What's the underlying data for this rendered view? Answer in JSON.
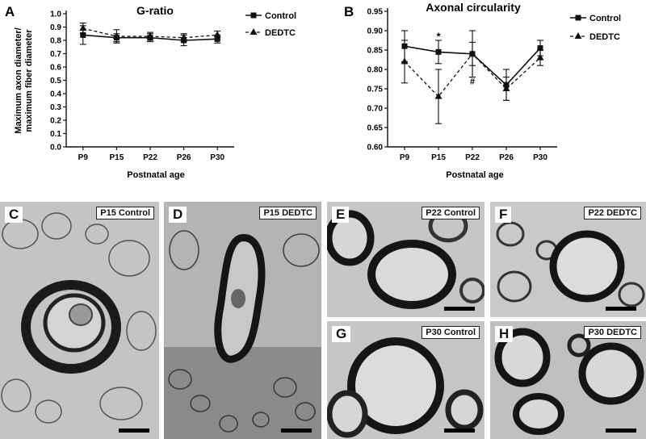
{
  "charts": {
    "a": {
      "panel_letter": "A",
      "title": "G-ratio",
      "ylabel_lines": [
        "Maximum axon diameter/",
        "maximum fiber diameter"
      ],
      "xlabel": "Postnatal age",
      "yticks": [
        "0.0",
        "0.1",
        "0.2",
        "0.3",
        "0.4",
        "0.5",
        "0.6",
        "0.7",
        "0.8",
        "0.9",
        "1.0"
      ],
      "legend": {
        "control": "Control",
        "dedtc": "DEDTC"
      }
    },
    "b": {
      "panel_letter": "B",
      "title": "Axonal circularity",
      "xlabel": "Postnatal age",
      "yticks": [
        "0.60",
        "0.65",
        "0.70",
        "0.75",
        "0.80",
        "0.85",
        "0.90",
        "0.95"
      ],
      "legend": {
        "control": "Control",
        "dedtc": "DEDTC"
      },
      "annotations": {
        "star": "*",
        "hash": "#"
      }
    }
  },
  "chart_data": [
    {
      "type": "line",
      "title": "G-ratio",
      "xlabel": "Postnatal age",
      "ylabel": "Maximum axon diameter/ maximum fiber diameter",
      "categories": [
        "P9",
        "P15",
        "P22",
        "P26",
        "P30"
      ],
      "ylim": [
        0.0,
        1.0
      ],
      "legend_position": "top-right",
      "series": [
        {
          "name": "Control",
          "values": [
            0.84,
            0.82,
            0.82,
            0.8,
            0.81
          ],
          "err": [
            0.07,
            0.03,
            0.03,
            0.04,
            0.03
          ],
          "style": "solid",
          "marker": "square"
        },
        {
          "name": "DEDTC",
          "values": [
            0.89,
            0.83,
            0.83,
            0.82,
            0.84
          ],
          "err": [
            0.04,
            0.05,
            0.03,
            0.03,
            0.03
          ],
          "style": "dashed",
          "marker": "triangle"
        }
      ]
    },
    {
      "type": "line",
      "title": "Axonal circularity",
      "xlabel": "Postnatal age",
      "ylabel": "",
      "categories": [
        "P9",
        "P15",
        "P22",
        "P26",
        "P30"
      ],
      "ylim": [
        0.6,
        0.95
      ],
      "legend_position": "top-right",
      "annotations": [
        {
          "text": "*",
          "category": "P15",
          "y": 0.88
        },
        {
          "text": "#",
          "category": "P22",
          "y": 0.77
        }
      ],
      "series": [
        {
          "name": "Control",
          "values": [
            0.86,
            0.845,
            0.84,
            0.76,
            0.855
          ],
          "err": [
            0.04,
            0.03,
            0.06,
            0.04,
            0.02
          ],
          "style": "solid",
          "marker": "square"
        },
        {
          "name": "DEDTC",
          "values": [
            0.82,
            0.73,
            0.84,
            0.75,
            0.83
          ],
          "err": [
            0.055,
            0.07,
            0.03,
            0.03,
            0.02
          ],
          "style": "dashed",
          "marker": "triangle"
        }
      ]
    }
  ],
  "micrographs": [
    {
      "letter": "C",
      "label": "P15 Control"
    },
    {
      "letter": "D",
      "label": "P15 DEDTC"
    },
    {
      "letter": "E",
      "label": "P22 Control"
    },
    {
      "letter": "F",
      "label": "P22 DEDTC"
    },
    {
      "letter": "G",
      "label": "P30 Control"
    },
    {
      "letter": "H",
      "label": "P30 DEDTC"
    }
  ]
}
